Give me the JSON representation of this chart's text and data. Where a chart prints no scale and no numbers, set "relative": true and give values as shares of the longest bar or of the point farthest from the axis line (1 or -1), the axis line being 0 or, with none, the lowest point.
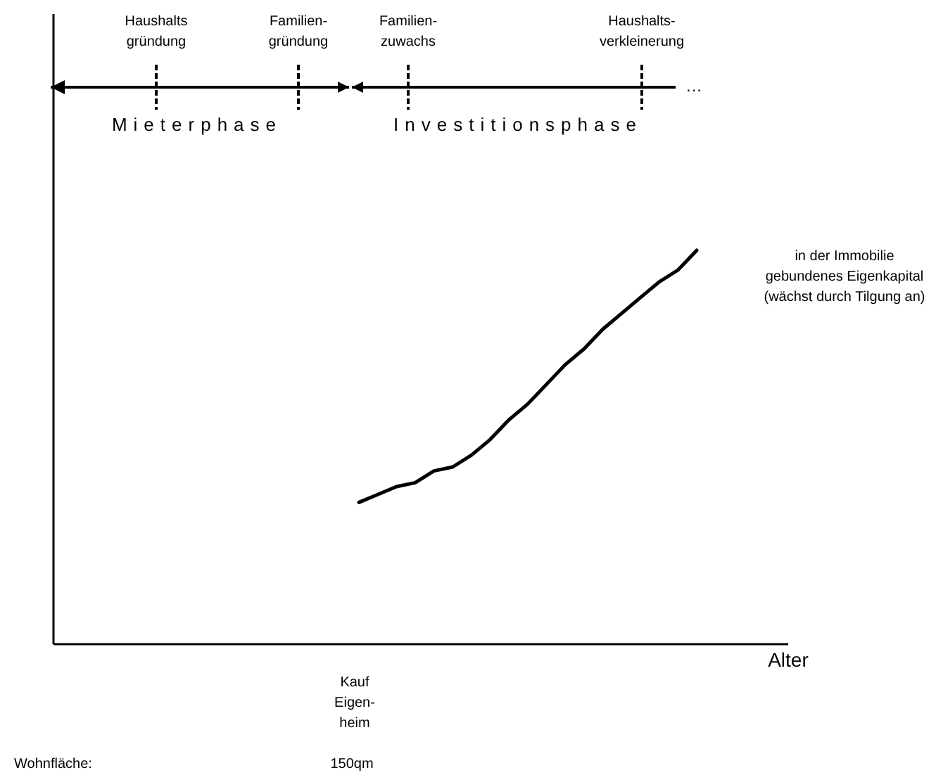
{
  "chart_data": {
    "type": "line",
    "relative": true,
    "xlabel": "Alter",
    "color": "#000000",
    "categories": [
      null,
      null,
      null,
      null,
      null,
      null,
      null,
      null,
      null,
      null,
      null,
      null,
      null,
      null,
      null,
      null,
      null,
      null,
      null
    ],
    "values": [
      0.36,
      0.38,
      0.4,
      0.41,
      0.44,
      0.45,
      0.48,
      0.52,
      0.57,
      0.61,
      0.66,
      0.71,
      0.75,
      0.8,
      0.84,
      0.88,
      0.92,
      0.95,
      1
    ],
    "annotations": [
      "Haushalts\ngründung",
      "Familien-\ngründung",
      "Familien-\nzuwachs",
      "Haushalts-\nverkleinerung",
      "Mieterphase",
      "Investitionsphase",
      "…",
      "in der Immobilie\ngebundenes Eigenkapital\n(wächst durch Tilgung an)",
      "Kauf\nEigen-\nheim",
      "Wohnfläche:",
      "150qm"
    ]
  }
}
